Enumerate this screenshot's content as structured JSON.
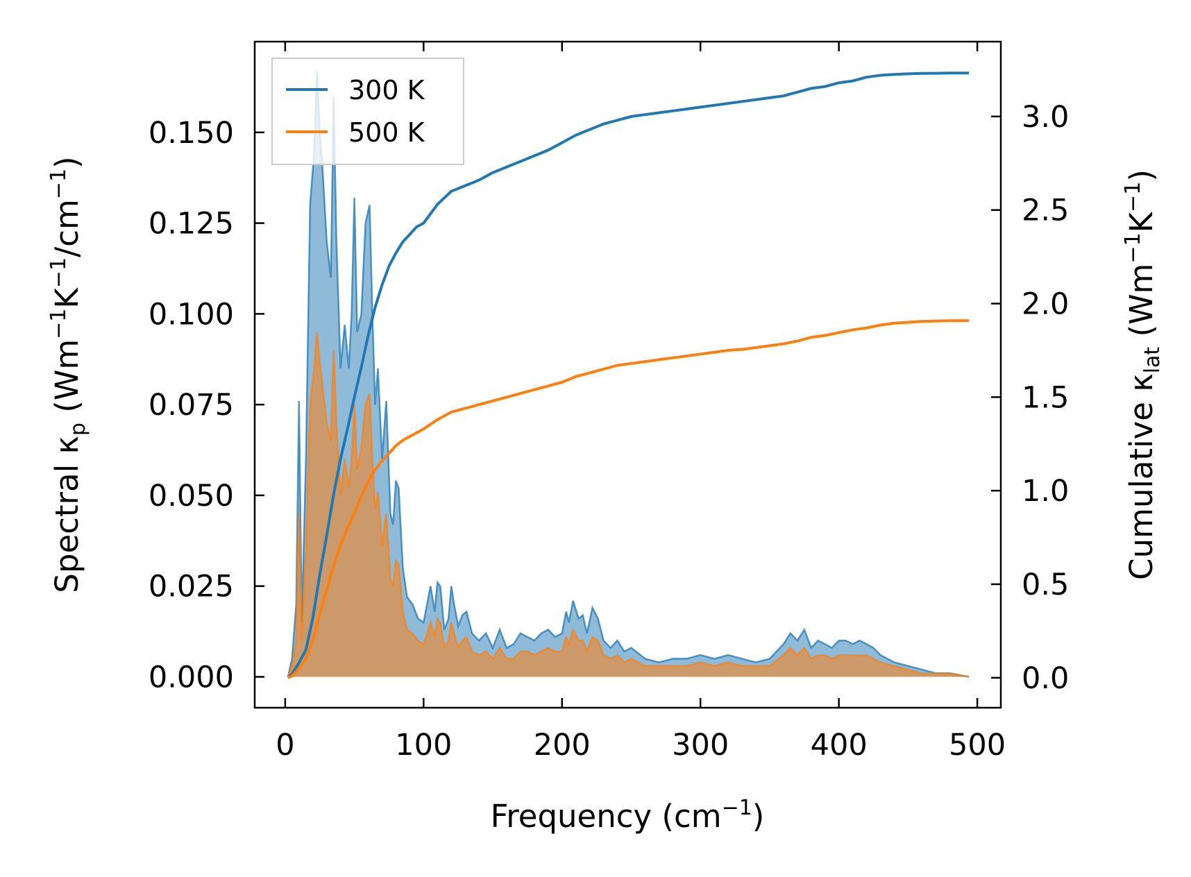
{
  "chart_data": {
    "type": "line",
    "xlabel": "Frequency (cm⁻¹)",
    "xlabel_parts": [
      "Frequency (cm",
      "−1",
      ")"
    ],
    "ylabel_left": "Spectral κp (Wm⁻¹K⁻¹/cm⁻¹)",
    "ylabel_left_parts": [
      "Spectral κ",
      "p",
      " (Wm",
      "−1",
      "K",
      "−1",
      "/cm",
      "−1",
      ")"
    ],
    "ylabel_right": "Cumulative κlat (Wm⁻¹K⁻¹)",
    "ylabel_right_parts": [
      "Cumulative κ",
      "lat",
      " (Wm",
      "−1",
      "K",
      "−1",
      ")"
    ],
    "xlim": [
      -22,
      517
    ],
    "ylim_left": [
      -0.0085,
      0.175
    ],
    "ylim_right": [
      -0.16,
      3.4
    ],
    "xticks": [
      0,
      100,
      200,
      300,
      400,
      500
    ],
    "xtick_labels": [
      "0",
      "100",
      "200",
      "300",
      "400",
      "500"
    ],
    "yticks_left": [
      0,
      0.025,
      0.05,
      0.075,
      0.1,
      0.125,
      0.15
    ],
    "ytick_labels_left": [
      "0.000",
      "0.025",
      "0.050",
      "0.075",
      "0.100",
      "0.125",
      "0.150"
    ],
    "yticks_right": [
      0,
      0.5,
      1,
      1.5,
      2,
      2.5,
      3
    ],
    "ytick_labels_right": [
      "0.0",
      "0.5",
      "1.0",
      "1.5",
      "2.0",
      "2.5",
      "3.0"
    ],
    "legend": {
      "position": "upper-left",
      "entries": [
        "300 K",
        "500 K"
      ]
    },
    "series": [
      {
        "name": "300 K",
        "color": "#1f77b4",
        "fill_color": "#1f77b4",
        "spectral": {
          "x": [
            2,
            5,
            8,
            10,
            12,
            15,
            18,
            21,
            23,
            25,
            27,
            30,
            33,
            35,
            37,
            40,
            43,
            46,
            48,
            50,
            52,
            55,
            58,
            61,
            63,
            65,
            67,
            70,
            73,
            76,
            78,
            80,
            82,
            85,
            88,
            92,
            96,
            100,
            105,
            108,
            110,
            112,
            115,
            118,
            120,
            122,
            125,
            128,
            131,
            135,
            140,
            145,
            150,
            155,
            160,
            165,
            170,
            175,
            180,
            185,
            190,
            195,
            200,
            203,
            205,
            208,
            212,
            215,
            218,
            222,
            226,
            230,
            235,
            240,
            245,
            250,
            260,
            270,
            280,
            290,
            300,
            310,
            320,
            330,
            340,
            350,
            360,
            365,
            370,
            375,
            380,
            385,
            390,
            395,
            400,
            405,
            410,
            415,
            420,
            425,
            430,
            440,
            450,
            460,
            470,
            480,
            494
          ],
          "y": [
            0,
            0.005,
            0.02,
            0.076,
            0.015,
            0.06,
            0.13,
            0.145,
            0.167,
            0.15,
            0.14,
            0.12,
            0.11,
            0.16,
            0.12,
            0.085,
            0.097,
            0.085,
            0.1,
            0.132,
            0.095,
            0.1,
            0.125,
            0.13,
            0.1,
            0.075,
            0.085,
            0.06,
            0.076,
            0.045,
            0.042,
            0.054,
            0.052,
            0.03,
            0.022,
            0.02,
            0.016,
            0.015,
            0.025,
            0.018,
            0.026,
            0.025,
            0.013,
            0.016,
            0.025,
            0.02,
            0.014,
            0.017,
            0.018,
            0.012,
            0.01,
            0.012,
            0.008,
            0.013,
            0.008,
            0.009,
            0.012,
            0.011,
            0.01,
            0.012,
            0.013,
            0.011,
            0.012,
            0.018,
            0.015,
            0.021,
            0.016,
            0.017,
            0.012,
            0.019,
            0.016,
            0.01,
            0.008,
            0.01,
            0.007,
            0.008,
            0.005,
            0.004,
            0.005,
            0.005,
            0.006,
            0.005,
            0.006,
            0.005,
            0.004,
            0.005,
            0.009,
            0.012,
            0.01,
            0.013,
            0.008,
            0.01,
            0.009,
            0.008,
            0.01,
            0.01,
            0.009,
            0.01,
            0.009,
            0.008,
            0.006,
            0.004,
            0.003,
            0.002,
            0.001,
            0.001,
            0
          ]
        },
        "cumulative": {
          "x": [
            2,
            5,
            10,
            15,
            20,
            25,
            30,
            35,
            40,
            45,
            50,
            55,
            60,
            65,
            70,
            75,
            80,
            85,
            90,
            95,
            100,
            110,
            120,
            130,
            140,
            150,
            160,
            170,
            180,
            190,
            200,
            210,
            220,
            230,
            240,
            250,
            260,
            270,
            280,
            290,
            300,
            310,
            320,
            330,
            340,
            350,
            360,
            370,
            380,
            390,
            400,
            410,
            420,
            430,
            440,
            450,
            460,
            470,
            480,
            494
          ],
          "y": [
            0,
            0.02,
            0.08,
            0.15,
            0.32,
            0.55,
            0.76,
            0.98,
            1.17,
            1.33,
            1.5,
            1.66,
            1.83,
            1.98,
            2.1,
            2.2,
            2.27,
            2.33,
            2.37,
            2.41,
            2.43,
            2.53,
            2.6,
            2.63,
            2.66,
            2.7,
            2.73,
            2.76,
            2.79,
            2.82,
            2.86,
            2.9,
            2.93,
            2.96,
            2.98,
            3.0,
            3.01,
            3.02,
            3.03,
            3.04,
            3.05,
            3.06,
            3.07,
            3.08,
            3.09,
            3.1,
            3.11,
            3.13,
            3.15,
            3.16,
            3.18,
            3.19,
            3.21,
            3.22,
            3.225,
            3.228,
            3.23,
            3.231,
            3.232,
            3.232
          ]
        }
      },
      {
        "name": "500 K",
        "color": "#ff7f0e",
        "fill_color": "#ff7f0e",
        "spectral": {
          "x": [
            2,
            5,
            8,
            10,
            12,
            15,
            18,
            21,
            23,
            25,
            27,
            30,
            33,
            35,
            37,
            40,
            43,
            46,
            48,
            50,
            52,
            55,
            58,
            61,
            63,
            65,
            67,
            70,
            73,
            76,
            78,
            80,
            82,
            85,
            88,
            92,
            96,
            100,
            105,
            108,
            110,
            112,
            115,
            118,
            120,
            122,
            125,
            128,
            131,
            135,
            140,
            145,
            150,
            155,
            160,
            165,
            170,
            175,
            180,
            185,
            190,
            195,
            200,
            203,
            205,
            208,
            212,
            215,
            218,
            222,
            226,
            230,
            235,
            240,
            245,
            250,
            260,
            270,
            280,
            290,
            300,
            310,
            320,
            330,
            340,
            350,
            360,
            365,
            370,
            375,
            380,
            385,
            390,
            395,
            400,
            405,
            410,
            415,
            420,
            425,
            430,
            440,
            450,
            460,
            470,
            480,
            494
          ],
          "y": [
            0,
            0.003,
            0.01,
            0.045,
            0.01,
            0.035,
            0.075,
            0.085,
            0.095,
            0.087,
            0.08,
            0.07,
            0.065,
            0.09,
            0.07,
            0.05,
            0.06,
            0.052,
            0.06,
            0.075,
            0.057,
            0.063,
            0.075,
            0.078,
            0.06,
            0.046,
            0.051,
            0.036,
            0.045,
            0.027,
            0.025,
            0.032,
            0.031,
            0.018,
            0.013,
            0.012,
            0.01,
            0.009,
            0.015,
            0.011,
            0.016,
            0.015,
            0.008,
            0.01,
            0.015,
            0.012,
            0.008,
            0.01,
            0.011,
            0.007,
            0.006,
            0.007,
            0.005,
            0.008,
            0.005,
            0.005,
            0.007,
            0.007,
            0.006,
            0.007,
            0.008,
            0.007,
            0.007,
            0.011,
            0.009,
            0.013,
            0.01,
            0.01,
            0.007,
            0.011,
            0.01,
            0.006,
            0.005,
            0.006,
            0.004,
            0.005,
            0.003,
            0.003,
            0.003,
            0.003,
            0.004,
            0.003,
            0.004,
            0.003,
            0.003,
            0.003,
            0.006,
            0.008,
            0.006,
            0.008,
            0.005,
            0.006,
            0.006,
            0.005,
            0.006,
            0.006,
            0.006,
            0.006,
            0.006,
            0.005,
            0.004,
            0.003,
            0.002,
            0.001,
            0.001,
            0.001,
            0
          ]
        },
        "cumulative": {
          "x": [
            2,
            5,
            10,
            15,
            20,
            25,
            30,
            35,
            40,
            45,
            50,
            55,
            60,
            65,
            70,
            75,
            80,
            85,
            90,
            95,
            100,
            110,
            120,
            130,
            140,
            150,
            160,
            170,
            180,
            190,
            200,
            210,
            220,
            230,
            240,
            250,
            260,
            270,
            280,
            290,
            300,
            310,
            320,
            330,
            340,
            350,
            360,
            370,
            380,
            390,
            400,
            410,
            420,
            430,
            440,
            450,
            460,
            470,
            480,
            494
          ],
          "y": [
            0,
            0.01,
            0.05,
            0.1,
            0.2,
            0.34,
            0.47,
            0.6,
            0.71,
            0.8,
            0.88,
            0.97,
            1.05,
            1.11,
            1.16,
            1.2,
            1.24,
            1.27,
            1.29,
            1.31,
            1.33,
            1.38,
            1.42,
            1.44,
            1.46,
            1.48,
            1.5,
            1.52,
            1.54,
            1.56,
            1.58,
            1.61,
            1.63,
            1.65,
            1.67,
            1.68,
            1.69,
            1.7,
            1.71,
            1.72,
            1.73,
            1.74,
            1.75,
            1.755,
            1.765,
            1.775,
            1.785,
            1.8,
            1.82,
            1.83,
            1.845,
            1.86,
            1.87,
            1.885,
            1.895,
            1.9,
            1.905,
            1.907,
            1.908,
            1.909
          ]
        }
      }
    ]
  }
}
